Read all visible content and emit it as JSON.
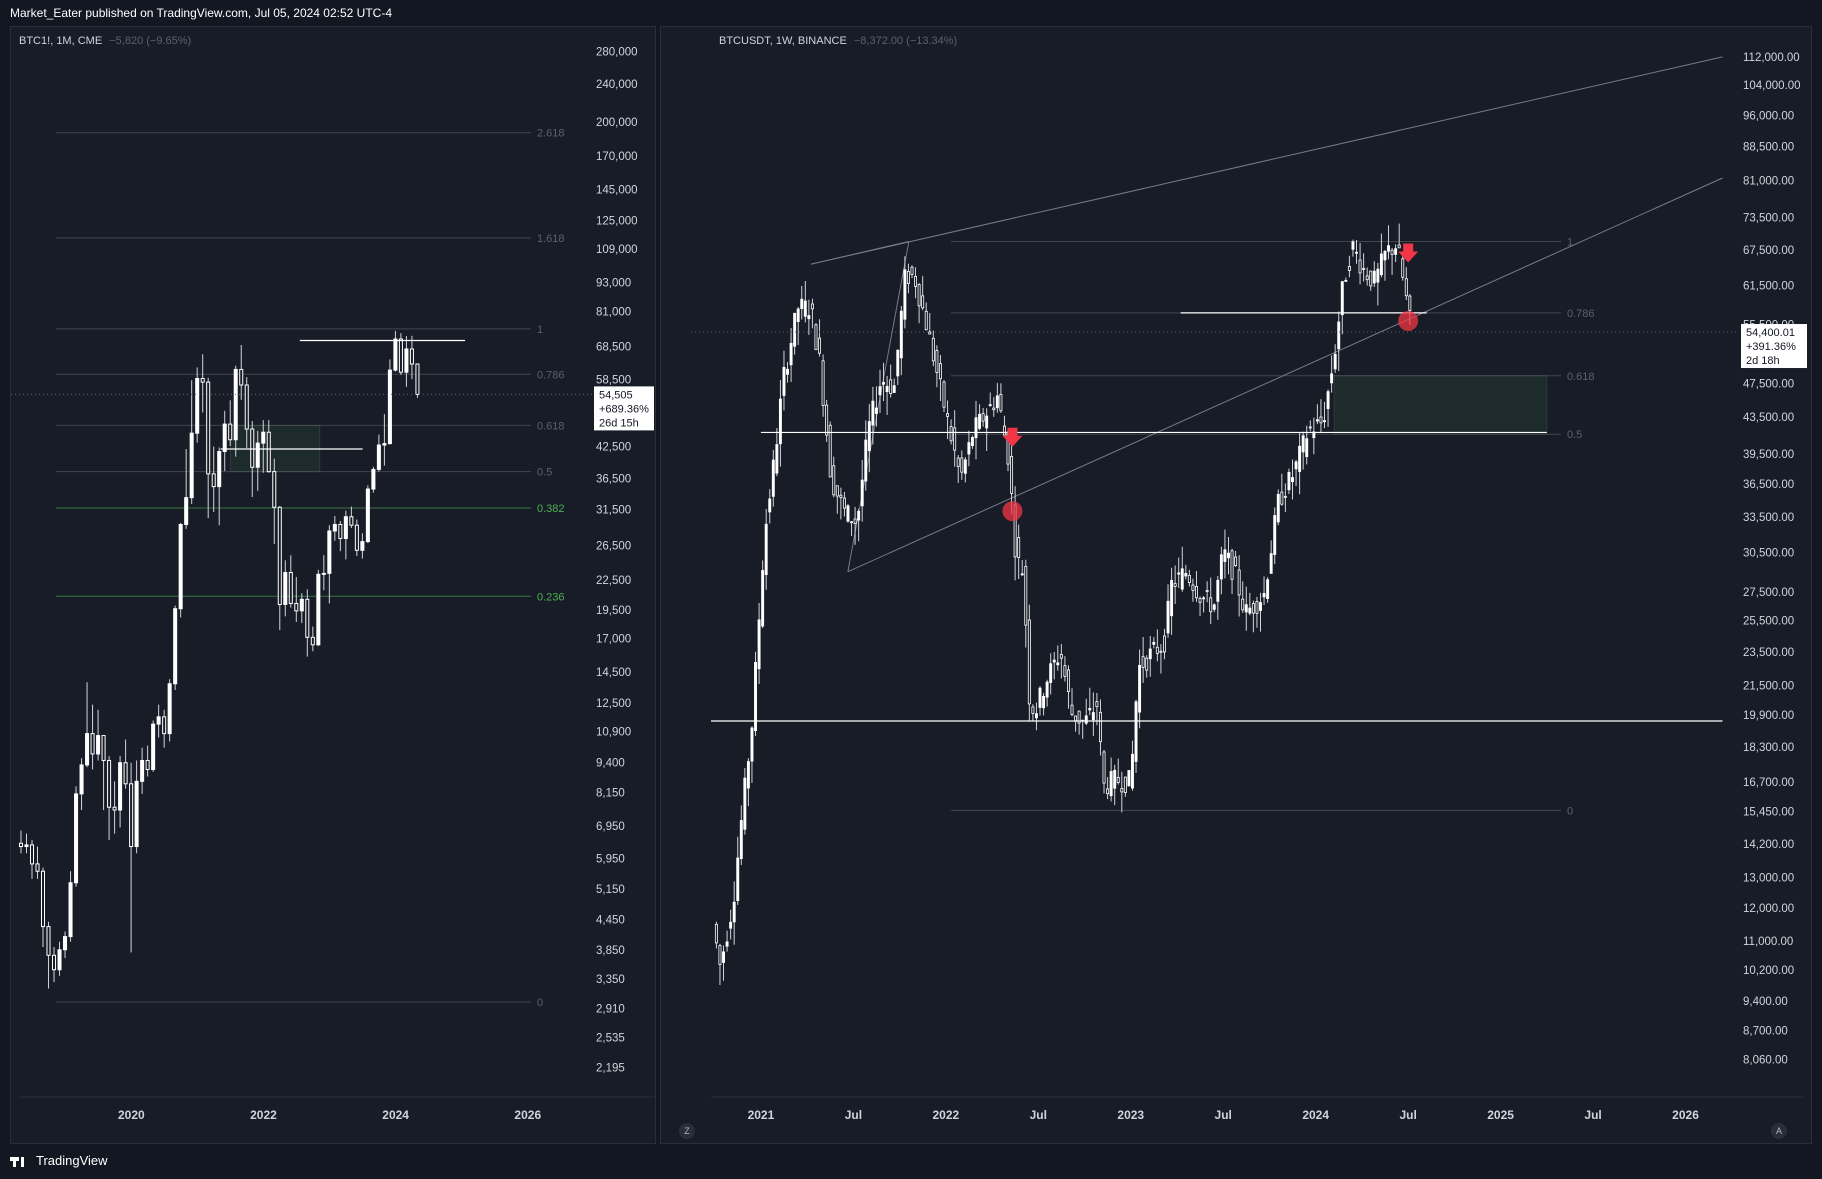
{
  "header": {
    "text": "Market_Eater published on TradingView.com, Jul 05, 2024 02:52 UTC-4"
  },
  "footer": {
    "brand": "TradingView",
    "logo_icon": "tradingview-logo-icon"
  },
  "colors": {
    "background": "#131722",
    "panel": "#181c27",
    "candle": "#ffffff",
    "fib_gray": "#5d606b",
    "fib_green": "#4caf50",
    "marker_red": "#f23645",
    "zone": "#1f2e2e"
  },
  "chart_data": [
    {
      "type": "candlestick",
      "symbol": "BTC1!",
      "interval": "1M",
      "exchange": "CME",
      "change_text": "−5,820 (−9.65%)",
      "scale": "log",
      "ylim": [
        2000,
        300000
      ],
      "y_ticks": [
        "280,000",
        "240,000",
        "200,000",
        "170,000",
        "145,000",
        "125,000",
        "109,000",
        "93,000",
        "81,000",
        "68,500",
        "58,500",
        "50,500",
        "42,500",
        "36,500",
        "31,500",
        "26,500",
        "22,500",
        "19,500",
        "17,000",
        "14,500",
        "12,500",
        "10,900",
        "9,400",
        "8,150",
        "6,950",
        "5,950",
        "5,150",
        "4,450",
        "3,850",
        "3,350",
        "2,910",
        "2,535",
        "2,195"
      ],
      "x_ticks": [
        {
          "label": "2020",
          "t": 2020.0
        },
        {
          "label": "2022",
          "t": 2022.0
        },
        {
          "label": "2024",
          "t": 2024.0
        },
        {
          "label": "2026",
          "t": 2026.0
        }
      ],
      "xlim": [
        2018.3,
        2026.2
      ],
      "price_box": {
        "price": "54,505",
        "change": "+689.36%",
        "countdown": "26d 15h"
      },
      "fib_levels": [
        {
          "label": "2.618",
          "price": 190000,
          "color": "gray"
        },
        {
          "label": "1.618",
          "price": 115000,
          "color": "gray"
        },
        {
          "label": "1",
          "price": 74500,
          "color": "gray"
        },
        {
          "label": "0.786",
          "price": 60000,
          "color": "gray"
        },
        {
          "label": "0.618",
          "price": 47000,
          "color": "gray"
        },
        {
          "label": "0.5",
          "price": 37700,
          "color": "gray"
        },
        {
          "label": "0.382",
          "price": 31700,
          "color": "green"
        },
        {
          "label": "0.236",
          "price": 20800,
          "color": "green"
        },
        {
          "label": "0",
          "price": 3000,
          "color": "gray"
        }
      ],
      "zone": {
        "t0": 2021.5,
        "t1": 2022.85,
        "low": 37700,
        "high": 47000
      },
      "hlines": [
        {
          "t0": 2022.55,
          "t1": 2025.05,
          "price": 70500
        },
        {
          "t0": 2021.35,
          "t1": 2023.5,
          "price": 42000
        }
      ],
      "last_price": 54505,
      "candles": [
        [
          6400,
          6300,
          6800,
          6100
        ],
        [
          6300,
          6350,
          6700,
          6100
        ],
        [
          6350,
          5800,
          6500,
          5400
        ],
        [
          5800,
          5600,
          6300,
          5400
        ],
        [
          5600,
          4300,
          5700,
          3900
        ],
        [
          4300,
          3750,
          4400,
          3200
        ],
        [
          3750,
          3500,
          3900,
          3300
        ],
        [
          3500,
          3850,
          4000,
          3400
        ],
        [
          3850,
          4100,
          4200,
          3700
        ],
        [
          4100,
          5300,
          5600,
          4000
        ],
        [
          5300,
          8100,
          8400,
          5200
        ],
        [
          8100,
          9300,
          9600,
          7500
        ],
        [
          9300,
          10800,
          13800,
          9200
        ],
        [
          10800,
          9800,
          12400,
          9100
        ],
        [
          9800,
          10700,
          12100,
          9500
        ],
        [
          10700,
          9500,
          10400,
          7500
        ],
        [
          9500,
          7600,
          9700,
          6500
        ],
        [
          7600,
          7500,
          8600,
          6700
        ],
        [
          7500,
          9400,
          9700,
          6900
        ],
        [
          9400,
          8500,
          10500,
          8300
        ],
        [
          8500,
          6300,
          9400,
          3800
        ],
        [
          6300,
          8600,
          9500,
          6100
        ],
        [
          8600,
          9500,
          10100,
          8100
        ],
        [
          9500,
          9100,
          10200,
          8800
        ],
        [
          9100,
          11300,
          11500,
          9000
        ],
        [
          11300,
          11700,
          12400,
          10600
        ],
        [
          11700,
          10800,
          12100,
          10100
        ],
        [
          10800,
          13700,
          14000,
          10400
        ],
        [
          13700,
          19600,
          19900,
          13300
        ],
        [
          19600,
          29300,
          29500,
          18800
        ],
        [
          29300,
          33300,
          42000,
          28700
        ],
        [
          33300,
          45300,
          58300,
          32300
        ],
        [
          45300,
          58800,
          62000,
          43300
        ],
        [
          58800,
          57800,
          66000,
          50000
        ],
        [
          57800,
          37300,
          59000,
          30200
        ],
        [
          37300,
          35100,
          42500,
          31100
        ],
        [
          35100,
          41500,
          42300,
          29200
        ],
        [
          41500,
          47300,
          50400,
          37800
        ],
        [
          47300,
          43900,
          53000,
          42600
        ],
        [
          43900,
          61400,
          62500,
          40500
        ],
        [
          61400,
          57000,
          69000,
          53100
        ],
        [
          57000,
          46200,
          59200,
          42200
        ],
        [
          46200,
          38500,
          48000,
          33400
        ],
        [
          38500,
          43200,
          45800,
          34400
        ],
        [
          43200,
          45500,
          48200,
          37500
        ],
        [
          45500,
          37700,
          48200,
          37500
        ],
        [
          37700,
          31800,
          40100,
          26700
        ],
        [
          31800,
          20000,
          32000,
          17700
        ],
        [
          20000,
          23300,
          24700,
          18900
        ],
        [
          23300,
          20100,
          25300,
          19700
        ],
        [
          20100,
          19400,
          22800,
          18400
        ],
        [
          19400,
          20500,
          21100,
          18300
        ],
        [
          20500,
          17100,
          21500,
          15600
        ],
        [
          17100,
          16500,
          18000,
          16000
        ],
        [
          16500,
          23100,
          23600,
          16400
        ],
        [
          23100,
          23200,
          25300,
          21400
        ],
        [
          23200,
          28400,
          29200,
          20100
        ],
        [
          28400,
          29300,
          30500,
          27100
        ],
        [
          29300,
          27400,
          29800,
          25800
        ],
        [
          27400,
          30400,
          31300,
          24800
        ],
        [
          30400,
          29200,
          31900,
          28800
        ],
        [
          29200,
          25900,
          30000,
          25200
        ],
        [
          25900,
          27000,
          28100,
          24900
        ],
        [
          27000,
          34700,
          35300,
          26800
        ],
        [
          34700,
          38100,
          38600,
          34100
        ],
        [
          38100,
          42800,
          45000,
          37700
        ],
        [
          42800,
          43100,
          49600,
          38800
        ],
        [
          43100,
          61200,
          64400,
          42900
        ],
        [
          61200,
          71000,
          73800,
          60800
        ],
        [
          71000,
          60600,
          73000,
          59800
        ],
        [
          60600,
          67700,
          72000,
          56500
        ],
        [
          67700,
          63000,
          72100,
          58600
        ],
        [
          63000,
          54505,
          63200,
          53600
        ]
      ]
    },
    {
      "type": "candlestick",
      "symbol": "BTCUSDT",
      "interval": "1W",
      "exchange": "BINANCE",
      "change_text": "−8,372.00 (−13.34%)",
      "scale": "log",
      "ylim": [
        7500,
        118000
      ],
      "y_ticks": [
        "112,000.00",
        "104,000.00",
        "96,000.00",
        "88,500.00",
        "81,000.00",
        "73,500.00",
        "67,500.00",
        "61,500.00",
        "55,500.00",
        "47,500.00",
        "43,500.00",
        "39,500.00",
        "36,500.00",
        "33,500.00",
        "30,500.00",
        "27,500.00",
        "25,500.00",
        "23,500.00",
        "21,500.00",
        "19,900.00",
        "18,300.00",
        "16,700.00",
        "15,450.00",
        "14,200.00",
        "13,000.00",
        "12,000.00",
        "11,000.00",
        "10,200.00",
        "9,400.00",
        "8,700.00",
        "8,060.00"
      ],
      "x_ticks": [
        {
          "label": "2021",
          "t": 2021.0
        },
        {
          "label": "Jul",
          "t": 2021.5
        },
        {
          "label": "2022",
          "t": 2022.0
        },
        {
          "label": "Jul",
          "t": 2022.5
        },
        {
          "label": "2023",
          "t": 2023.0
        },
        {
          "label": "Jul",
          "t": 2023.5
        },
        {
          "label": "2024",
          "t": 2024.0
        },
        {
          "label": "Jul",
          "t": 2024.5
        },
        {
          "label": "2025",
          "t": 2025.0
        },
        {
          "label": "Jul",
          "t": 2025.5
        },
        {
          "label": "2026",
          "t": 2026.0
        }
      ],
      "xlim": [
        2020.73,
        2026.3
      ],
      "price_box": {
        "price": "54,400.01",
        "change": "+391.36%",
        "countdown": "2d 18h"
      },
      "scale_buttons": [
        "Z",
        "A"
      ],
      "fib_levels": [
        {
          "label": "1",
          "price": 69000,
          "color": "gray"
        },
        {
          "label": "0.786",
          "price": 57200,
          "color": "gray"
        },
        {
          "label": "0.618",
          "price": 48500,
          "color": "gray"
        },
        {
          "label": "0.5",
          "price": 41600,
          "color": "gray"
        },
        {
          "label": "0",
          "price": 15500,
          "color": "gray"
        }
      ],
      "zone": {
        "t0": 2024.1,
        "t1": 2025.25,
        "low": 41600,
        "high": 48500
      },
      "hlines": [
        {
          "t0": 2021.0,
          "t1": 2025.25,
          "price": 41800
        },
        {
          "t0": 2020.73,
          "t1": 2026.2,
          "price": 19600
        },
        {
          "t0": 2023.27,
          "t1": 2024.6,
          "price": 57200
        }
      ],
      "trendlines": [
        {
          "t0": 2021.27,
          "p0": 65000,
          "t1": 2026.2,
          "p1": 112000
        },
        {
          "t0": 2021.47,
          "p0": 29000,
          "t1": 2026.2,
          "p1": 81500
        },
        {
          "t0": 2021.47,
          "p0": 29000,
          "t1": 2021.8,
          "p1": 69000
        },
        {
          "t0": 2021.27,
          "p0": 65000,
          "t1": 2021.8,
          "p1": 69000
        }
      ],
      "markers": [
        {
          "kind": "arrow-down",
          "t": 2022.36,
          "price": 41000
        },
        {
          "kind": "circle",
          "t": 2022.36,
          "price": 34000
        },
        {
          "kind": "arrow-down",
          "t": 2024.5,
          "price": 66500
        },
        {
          "kind": "circle",
          "t": 2024.5,
          "price": 56000
        }
      ],
      "last_price": 54400,
      "anchors": [
        [
          2020.74,
          11500
        ],
        [
          2020.78,
          10300
        ],
        [
          2020.85,
          12200
        ],
        [
          2020.9,
          15500
        ],
        [
          2020.95,
          19200
        ],
        [
          2021.02,
          32000
        ],
        [
          2021.08,
          40000
        ],
        [
          2021.12,
          48000
        ],
        [
          2021.2,
          58000
        ],
        [
          2021.27,
          58000
        ],
        [
          2021.32,
          50000
        ],
        [
          2021.38,
          37000
        ],
        [
          2021.45,
          34000
        ],
        [
          2021.52,
          33000
        ],
        [
          2021.58,
          42000
        ],
        [
          2021.65,
          48000
        ],
        [
          2021.72,
          47000
        ],
        [
          2021.78,
          63000
        ],
        [
          2021.83,
          63000
        ],
        [
          2021.9,
          55000
        ],
        [
          2021.96,
          48000
        ],
        [
          2022.02,
          42000
        ],
        [
          2022.08,
          37000
        ],
        [
          2022.15,
          42000
        ],
        [
          2022.22,
          44000
        ],
        [
          2022.28,
          46000
        ],
        [
          2022.34,
          39000
        ],
        [
          2022.38,
          30000
        ],
        [
          2022.42,
          29000
        ],
        [
          2022.45,
          21000
        ],
        [
          2022.48,
          20000
        ],
        [
          2022.55,
          22000
        ],
        [
          2022.62,
          23500
        ],
        [
          2022.68,
          20000
        ],
        [
          2022.75,
          19500
        ],
        [
          2022.82,
          20500
        ],
        [
          2022.85,
          16500
        ],
        [
          2022.92,
          16800
        ],
        [
          2023.0,
          16700
        ],
        [
          2023.04,
          22500
        ],
        [
          2023.12,
          23500
        ],
        [
          2023.18,
          24000
        ],
        [
          2023.22,
          28000
        ],
        [
          2023.3,
          29000
        ],
        [
          2023.38,
          27200
        ],
        [
          2023.45,
          26500
        ],
        [
          2023.5,
          30500
        ],
        [
          2023.56,
          29000
        ],
        [
          2023.62,
          26000
        ],
        [
          2023.72,
          27300
        ],
        [
          2023.8,
          35000
        ],
        [
          2023.88,
          37500
        ],
        [
          2023.96,
          42000
        ],
        [
          2024.04,
          43000
        ],
        [
          2024.1,
          51000
        ],
        [
          2024.15,
          62000
        ],
        [
          2024.2,
          68000
        ],
        [
          2024.26,
          64000
        ],
        [
          2024.32,
          62000
        ],
        [
          2024.38,
          67000
        ],
        [
          2024.44,
          68500
        ],
        [
          2024.48,
          61000
        ],
        [
          2024.52,
          54400
        ]
      ]
    }
  ]
}
